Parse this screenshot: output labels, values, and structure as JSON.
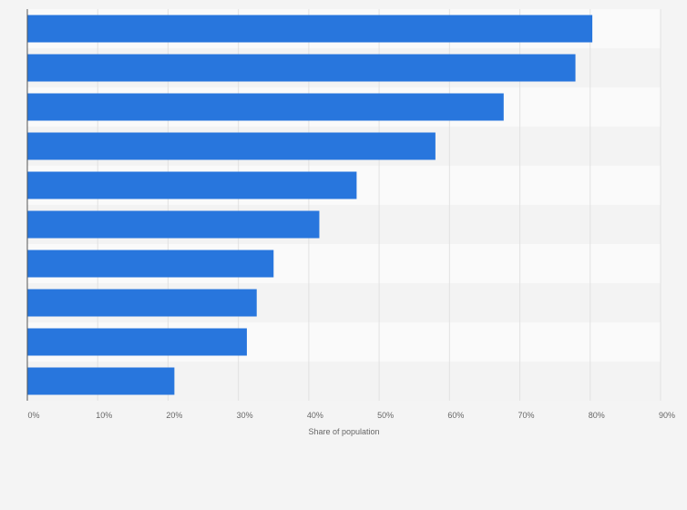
{
  "chart_data": {
    "type": "bar",
    "orientation": "horizontal",
    "categories": [
      "",
      "",
      "",
      "",
      "",
      "",
      "",
      "",
      "",
      ""
    ],
    "values": [
      80.3,
      77.9,
      67.7,
      58.0,
      46.8,
      41.5,
      35.0,
      32.6,
      31.2,
      20.9
    ],
    "xlabel": "Share of population",
    "ylabel": "",
    "xlim": [
      0,
      90
    ],
    "ticks": [
      0,
      10,
      20,
      30,
      40,
      50,
      60,
      70,
      80,
      90
    ],
    "tick_labels": [
      "0%",
      "10%",
      "20%",
      "30%",
      "40%",
      "50%",
      "60%",
      "70%",
      "80%",
      "90%"
    ],
    "grid": true,
    "legend": "none",
    "colors": {
      "bar": "#2876dd",
      "band_light": "#fafafa",
      "band_dark": "#f3f3f3",
      "grid": "#e2e2e2",
      "axis": "#555555"
    }
  }
}
